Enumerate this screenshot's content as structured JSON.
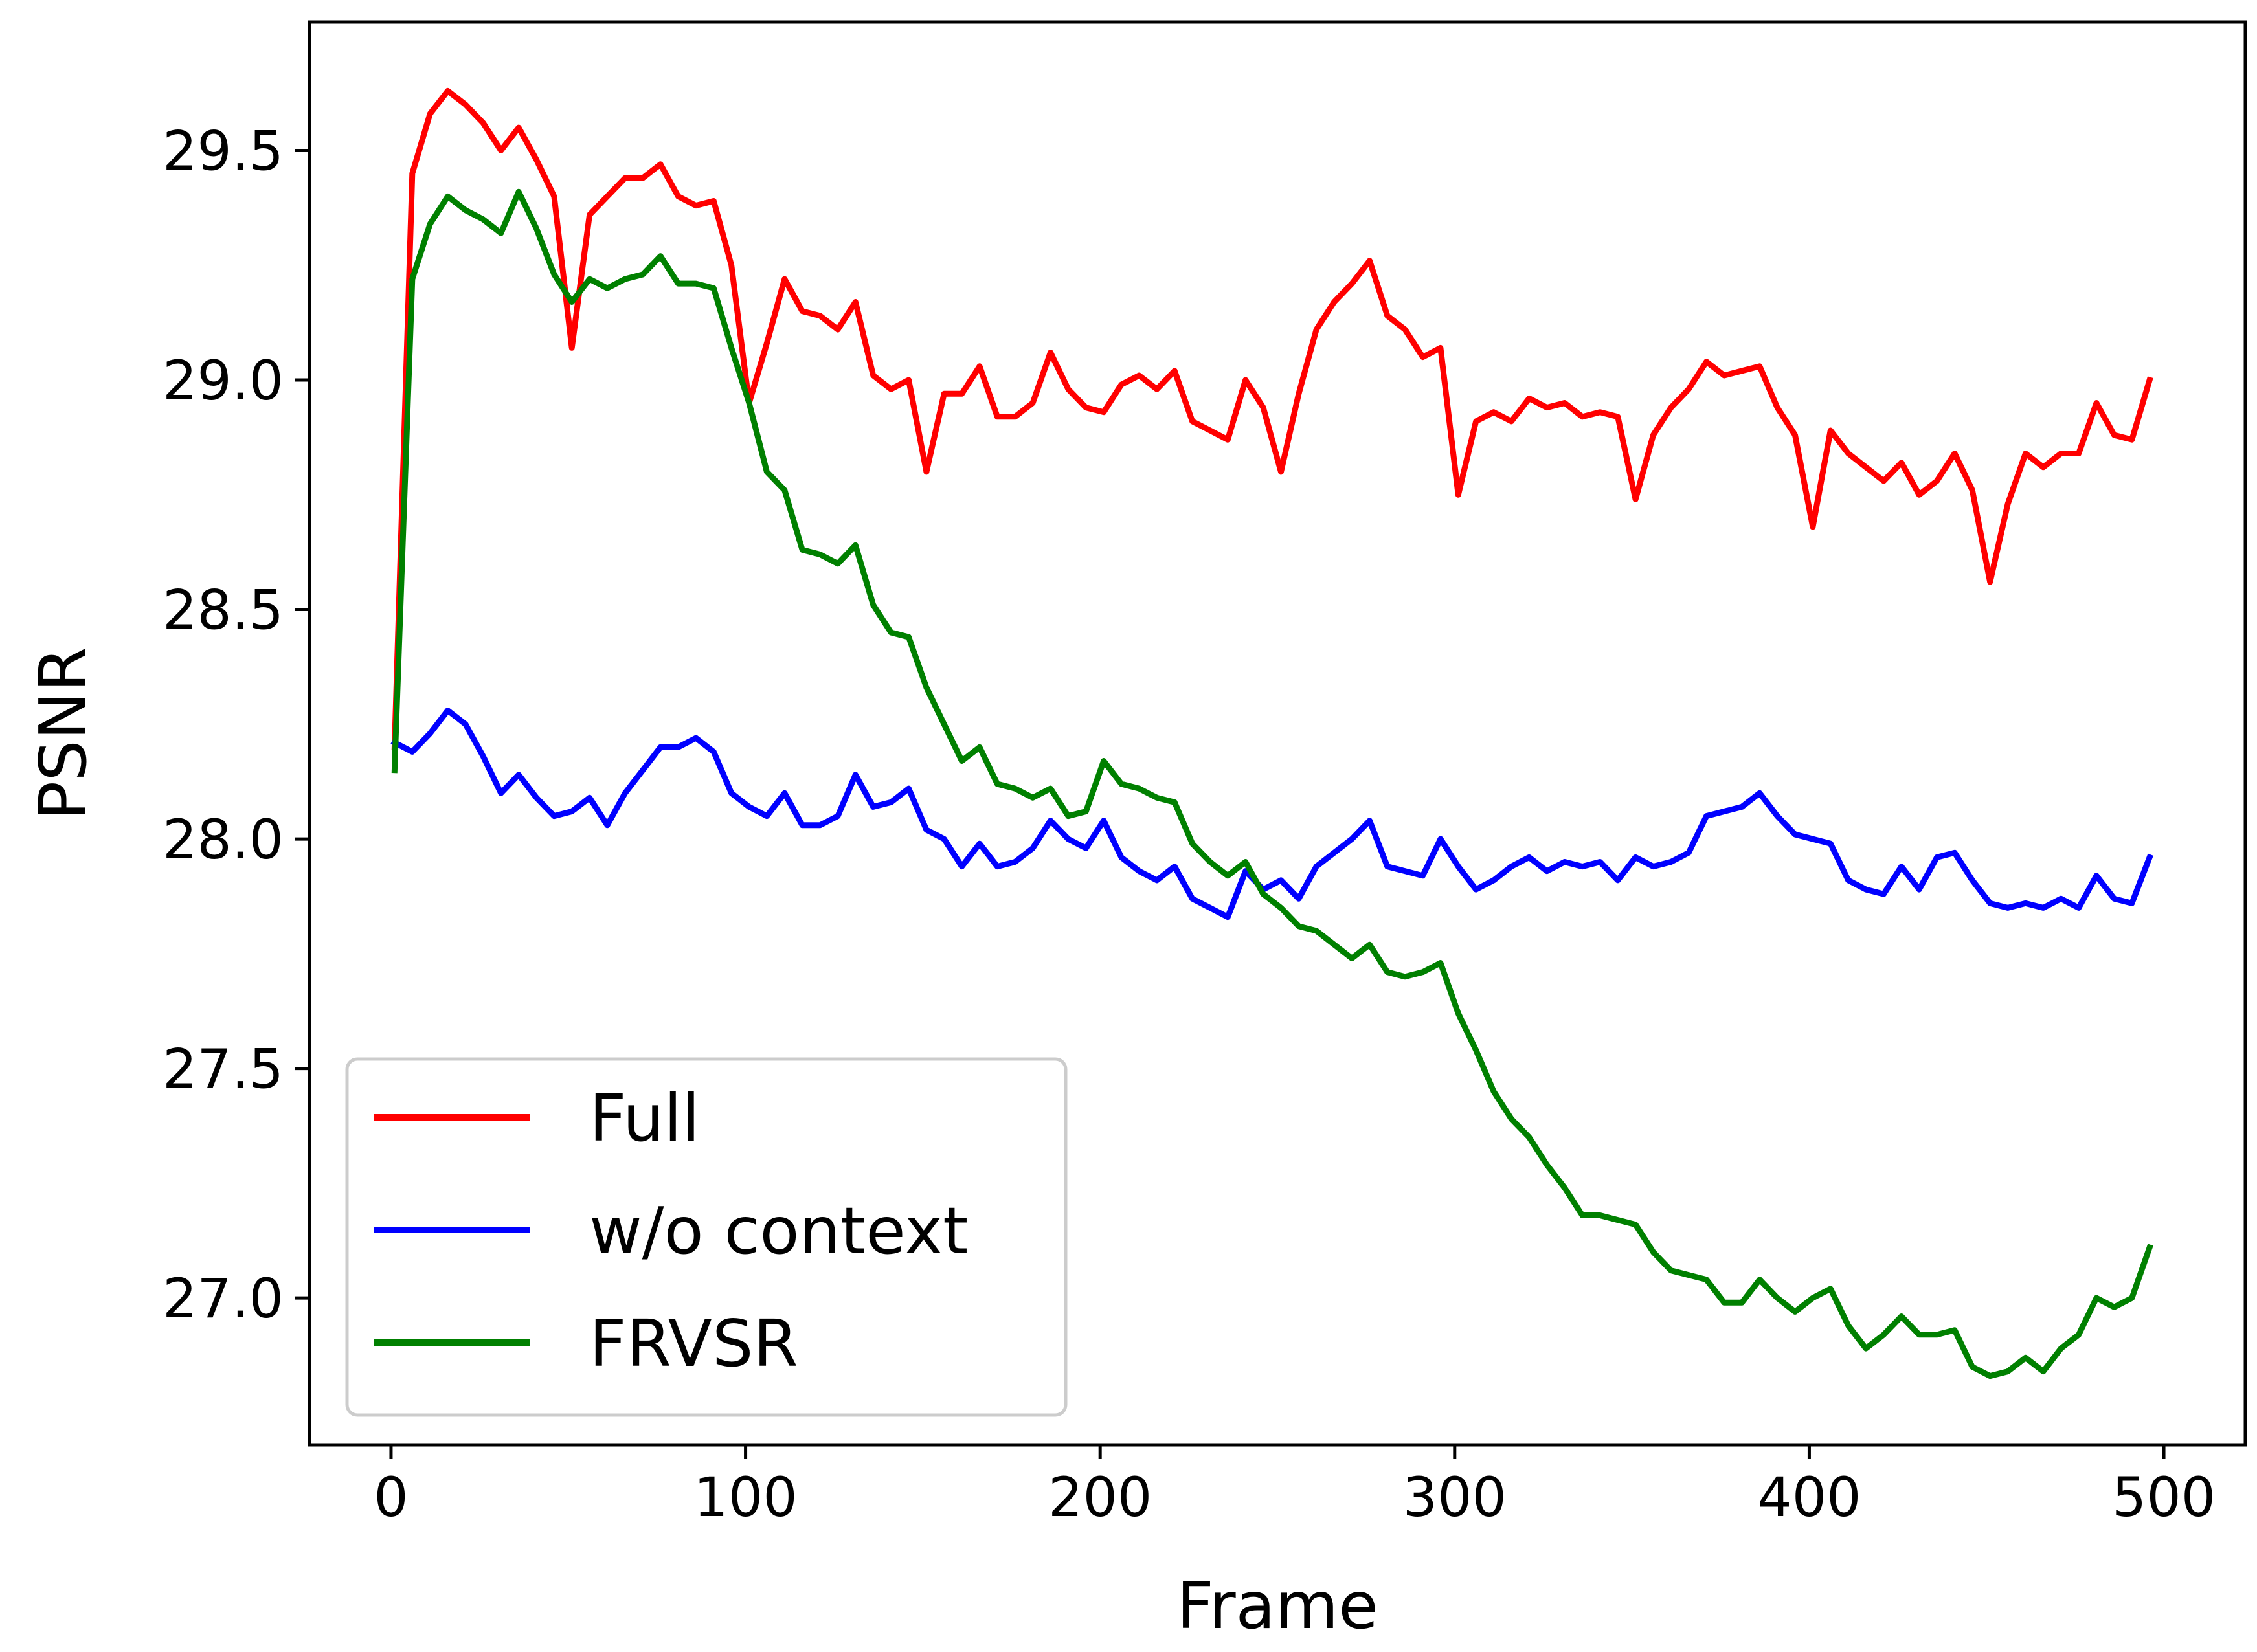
{
  "chart_data": {
    "type": "line",
    "xlabel": "Frame",
    "ylabel": "PSNR",
    "xlim": [
      -23,
      523
    ],
    "ylim": [
      26.68,
      29.78
    ],
    "xticks": [
      0,
      100,
      200,
      300,
      400,
      500
    ],
    "xtick_labels": [
      "0",
      "100",
      "200",
      "300",
      "400",
      "500"
    ],
    "yticks": [
      27.0,
      27.5,
      28.0,
      28.5,
      29.0,
      29.5
    ],
    "ytick_labels": [
      "27.0",
      "27.5",
      "28.0",
      "28.5",
      "29.0",
      "29.5"
    ],
    "grid": false,
    "legend_position": "lower-left",
    "x": [
      1,
      6,
      11,
      16,
      21,
      26,
      31,
      36,
      41,
      46,
      51,
      56,
      61,
      66,
      71,
      76,
      81,
      86,
      91,
      96,
      101,
      106,
      111,
      116,
      121,
      126,
      131,
      136,
      141,
      146,
      151,
      156,
      161,
      166,
      171,
      176,
      181,
      186,
      191,
      196,
      201,
      206,
      211,
      216,
      221,
      226,
      231,
      236,
      241,
      246,
      251,
      256,
      261,
      266,
      271,
      276,
      281,
      286,
      291,
      296,
      301,
      306,
      311,
      316,
      321,
      326,
      331,
      336,
      341,
      346,
      351,
      356,
      361,
      366,
      371,
      376,
      381,
      386,
      391,
      396,
      401,
      406,
      411,
      416,
      421,
      426,
      431,
      436,
      441,
      446,
      451,
      456,
      461,
      466,
      471,
      476,
      481,
      486,
      491,
      496
    ],
    "series": [
      {
        "name": "Full",
        "color": "#ff0000",
        "values": [
          28.2,
          29.45,
          29.58,
          29.63,
          29.6,
          29.56,
          29.5,
          29.55,
          29.48,
          29.4,
          29.07,
          29.36,
          29.4,
          29.44,
          29.44,
          29.47,
          29.4,
          29.38,
          29.39,
          29.25,
          28.95,
          29.08,
          29.22,
          29.15,
          29.14,
          29.11,
          29.17,
          29.01,
          28.98,
          29.0,
          28.8,
          28.97,
          28.97,
          29.03,
          28.92,
          28.92,
          28.95,
          29.06,
          28.98,
          28.94,
          28.93,
          28.99,
          29.01,
          28.98,
          29.02,
          28.91,
          28.89,
          28.87,
          29.0,
          28.94,
          28.8,
          28.97,
          29.11,
          29.17,
          29.21,
          29.26,
          29.14,
          29.11,
          29.05,
          29.07,
          28.75,
          28.91,
          28.93,
          28.91,
          28.96,
          28.94,
          28.95,
          28.92,
          28.93,
          28.92,
          28.74,
          28.88,
          28.94,
          28.98,
          29.04,
          29.01,
          29.02,
          29.03,
          28.94,
          28.88,
          28.68,
          28.89,
          28.84,
          28.81,
          28.78,
          28.82,
          28.75,
          28.78,
          28.84,
          28.76,
          28.56,
          28.73,
          28.84,
          28.81,
          28.84,
          28.84,
          28.95,
          28.88,
          28.87,
          29.0
        ]
      },
      {
        "name": "w/o context",
        "color": "#0000ff",
        "values": [
          28.21,
          28.19,
          28.23,
          28.28,
          28.25,
          28.18,
          28.1,
          28.14,
          28.09,
          28.05,
          28.06,
          28.09,
          28.03,
          28.1,
          28.15,
          28.2,
          28.2,
          28.22,
          28.19,
          28.1,
          28.07,
          28.05,
          28.1,
          28.03,
          28.03,
          28.05,
          28.14,
          28.07,
          28.08,
          28.11,
          28.02,
          28.0,
          27.94,
          27.99,
          27.94,
          27.95,
          27.98,
          28.04,
          28.0,
          27.98,
          28.04,
          27.96,
          27.93,
          27.91,
          27.94,
          27.87,
          27.85,
          27.83,
          27.93,
          27.89,
          27.91,
          27.87,
          27.94,
          27.97,
          28.0,
          28.04,
          27.94,
          27.93,
          27.92,
          28.0,
          27.94,
          27.89,
          27.91,
          27.94,
          27.96,
          27.93,
          27.95,
          27.94,
          27.95,
          27.91,
          27.96,
          27.94,
          27.95,
          27.97,
          28.05,
          28.06,
          28.07,
          28.1,
          28.05,
          28.01,
          28.0,
          27.99,
          27.91,
          27.89,
          27.88,
          27.94,
          27.89,
          27.96,
          27.97,
          27.91,
          27.86,
          27.85,
          27.86,
          27.85,
          27.87,
          27.85,
          27.92,
          27.87,
          27.86,
          27.96
        ]
      },
      {
        "name": "FRVSR",
        "color": "#008000",
        "values": [
          28.15,
          29.22,
          29.34,
          29.4,
          29.37,
          29.35,
          29.32,
          29.41,
          29.33,
          29.23,
          29.17,
          29.22,
          29.2,
          29.22,
          29.23,
          29.27,
          29.21,
          29.21,
          29.2,
          29.07,
          28.95,
          28.8,
          28.76,
          28.63,
          28.62,
          28.6,
          28.64,
          28.51,
          28.45,
          28.44,
          28.33,
          28.25,
          28.17,
          28.2,
          28.12,
          28.11,
          28.09,
          28.11,
          28.05,
          28.06,
          28.17,
          28.12,
          28.11,
          28.09,
          28.08,
          27.99,
          27.95,
          27.92,
          27.95,
          27.88,
          27.85,
          27.81,
          27.8,
          27.77,
          27.74,
          27.77,
          27.71,
          27.7,
          27.71,
          27.73,
          27.62,
          27.54,
          27.45,
          27.39,
          27.35,
          27.29,
          27.24,
          27.18,
          27.18,
          27.17,
          27.16,
          27.1,
          27.06,
          27.05,
          27.04,
          26.99,
          26.99,
          27.04,
          27.0,
          26.97,
          27.0,
          27.02,
          26.94,
          26.89,
          26.92,
          26.96,
          26.92,
          26.92,
          26.93,
          26.85,
          26.83,
          26.84,
          26.87,
          26.84,
          26.89,
          26.92,
          27.0,
          26.98,
          27.0,
          27.11
        ]
      }
    ]
  }
}
